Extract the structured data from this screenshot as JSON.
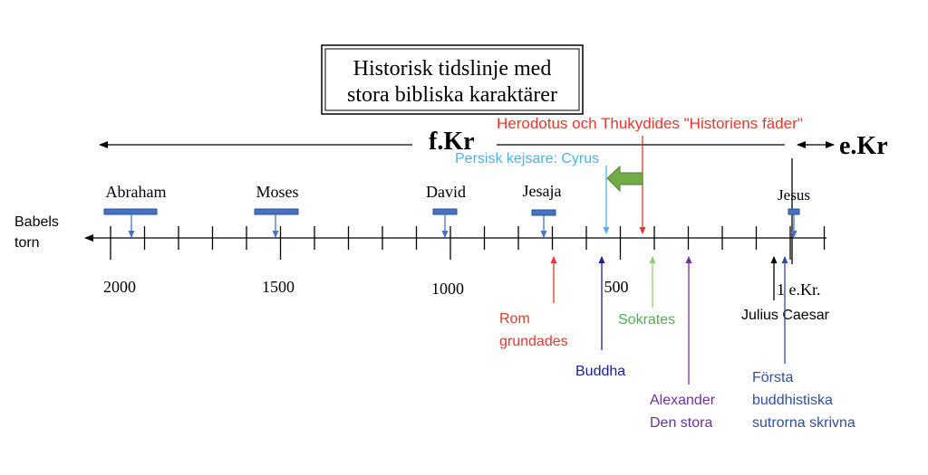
{
  "title": {
    "lines": [
      "Historisk tidslinje med",
      "stora bibliska karaktärer"
    ]
  },
  "eras": {
    "before": "f.Kr",
    "after": "e.Kr"
  },
  "start": {
    "lines": [
      "Babels",
      "torn"
    ]
  },
  "characters": [
    "Abraham",
    "Moses",
    "David",
    "Jesaja",
    "Jesus"
  ],
  "axis_labels": [
    "2000",
    "1500",
    "1000",
    "500",
    "1 e.Kr."
  ],
  "events": {
    "herodotus": "Herodotus och Thukydides \"Historiens fäder\"",
    "cyrus": "Persisk kejsare: Cyrus",
    "rom": [
      "Rom",
      "grundades"
    ],
    "buddha": "Buddha",
    "sokrates": "Sokrates",
    "alexander": [
      "Alexander",
      "Den stora"
    ],
    "caesar": "Julius Caesar",
    "sutror": [
      "Första",
      "buddhistiska",
      "sutrorna skrivna"
    ]
  }
}
